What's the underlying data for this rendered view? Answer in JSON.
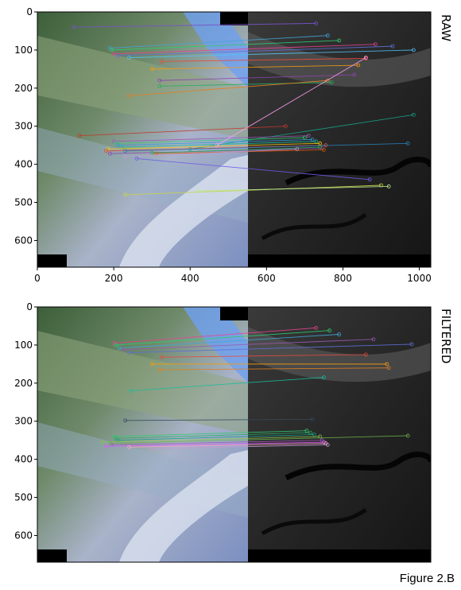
{
  "caption": "Figure 2.B",
  "panels": [
    {
      "id": "raw",
      "label": "RAW",
      "x_ticks": [
        0,
        200,
        400,
        600,
        800,
        1000
      ],
      "y_ticks": [
        0,
        100,
        200,
        300,
        400,
        500,
        600
      ],
      "x_range": [
        0,
        1030
      ],
      "y_range": [
        0,
        670
      ],
      "matches": [
        {
          "x1": 95,
          "y1": 40,
          "x2": 730,
          "y2": 30,
          "color": "#7a52c9"
        },
        {
          "x1": 190,
          "y1": 95,
          "x2": 760,
          "y2": 62,
          "color": "#3fa7d6"
        },
        {
          "x1": 195,
          "y1": 100,
          "x2": 790,
          "y2": 75,
          "color": "#2ecc71"
        },
        {
          "x1": 200,
          "y1": 110,
          "x2": 885,
          "y2": 85,
          "color": "#e84393"
        },
        {
          "x1": 210,
          "y1": 115,
          "x2": 930,
          "y2": 90,
          "color": "#5f6fd6"
        },
        {
          "x1": 240,
          "y1": 120,
          "x2": 985,
          "y2": 100,
          "color": "#4fc3f7"
        },
        {
          "x1": 325,
          "y1": 130,
          "x2": 860,
          "y2": 122,
          "color": "#e74c3c"
        },
        {
          "x1": 300,
          "y1": 150,
          "x2": 840,
          "y2": 140,
          "color": "#f39c12"
        },
        {
          "x1": 320,
          "y1": 180,
          "x2": 830,
          "y2": 165,
          "color": "#8e44ad"
        },
        {
          "x1": 320,
          "y1": 195,
          "x2": 770,
          "y2": 185,
          "color": "#27ae60"
        },
        {
          "x1": 240,
          "y1": 220,
          "x2": 760,
          "y2": 180,
          "color": "#e67e22"
        },
        {
          "x1": 110,
          "y1": 325,
          "x2": 650,
          "y2": 300,
          "color": "#c0392b"
        },
        {
          "x1": 400,
          "y1": 360,
          "x2": 985,
          "y2": 270,
          "color": "#16a085"
        },
        {
          "x1": 200,
          "y1": 340,
          "x2": 710,
          "y2": 325,
          "color": "#9b59b6"
        },
        {
          "x1": 205,
          "y1": 345,
          "x2": 700,
          "y2": 330,
          "color": "#2ecc71"
        },
        {
          "x1": 210,
          "y1": 350,
          "x2": 720,
          "y2": 335,
          "color": "#3498db"
        },
        {
          "x1": 220,
          "y1": 355,
          "x2": 730,
          "y2": 340,
          "color": "#1abc9c"
        },
        {
          "x1": 185,
          "y1": 360,
          "x2": 740,
          "y2": 345,
          "color": "#f1c40f"
        },
        {
          "x1": 180,
          "y1": 365,
          "x2": 755,
          "y2": 350,
          "color": "#e74c3c"
        },
        {
          "x1": 230,
          "y1": 365,
          "x2": 970,
          "y2": 345,
          "color": "#2980b9"
        },
        {
          "x1": 190,
          "y1": 372,
          "x2": 745,
          "y2": 358,
          "color": "#8e44ad"
        },
        {
          "x1": 300,
          "y1": 370,
          "x2": 740,
          "y2": 355,
          "color": "#27ae60"
        },
        {
          "x1": 310,
          "y1": 372,
          "x2": 750,
          "y2": 362,
          "color": "#d35400"
        },
        {
          "x1": 230,
          "y1": 380,
          "x2": 680,
          "y2": 360,
          "color": "#c39bd3"
        },
        {
          "x1": 470,
          "y1": 350,
          "x2": 860,
          "y2": 120,
          "color": "#ff9ff3"
        },
        {
          "x1": 260,
          "y1": 385,
          "x2": 870,
          "y2": 440,
          "color": "#6c5ce7"
        },
        {
          "x1": 230,
          "y1": 480,
          "x2": 900,
          "y2": 455,
          "color": "#c8d645"
        },
        {
          "x1": 420,
          "y1": 470,
          "x2": 920,
          "y2": 458,
          "color": "#b8e994"
        }
      ]
    },
    {
      "id": "filtered",
      "label": "FILTERED",
      "x_ticks": [],
      "y_ticks": [
        0,
        100,
        200,
        300,
        400,
        500,
        600
      ],
      "x_range": [
        0,
        1030
      ],
      "y_range": [
        0,
        670
      ],
      "matches": [
        {
          "x1": 200,
          "y1": 95,
          "x2": 730,
          "y2": 55,
          "color": "#e84393"
        },
        {
          "x1": 205,
          "y1": 100,
          "x2": 765,
          "y2": 62,
          "color": "#2ecc71"
        },
        {
          "x1": 215,
          "y1": 108,
          "x2": 790,
          "y2": 72,
          "color": "#3fa7d6"
        },
        {
          "x1": 225,
          "y1": 112,
          "x2": 880,
          "y2": 85,
          "color": "#9b59b6"
        },
        {
          "x1": 240,
          "y1": 120,
          "x2": 980,
          "y2": 98,
          "color": "#5f6fd6"
        },
        {
          "x1": 325,
          "y1": 132,
          "x2": 860,
          "y2": 125,
          "color": "#e74c3c"
        },
        {
          "x1": 300,
          "y1": 150,
          "x2": 915,
          "y2": 150,
          "color": "#f39c12"
        },
        {
          "x1": 320,
          "y1": 165,
          "x2": 920,
          "y2": 160,
          "color": "#e67e22"
        },
        {
          "x1": 245,
          "y1": 220,
          "x2": 750,
          "y2": 185,
          "color": "#1abc9c"
        },
        {
          "x1": 200,
          "y1": 340,
          "x2": 705,
          "y2": 325,
          "color": "#2ecc71"
        },
        {
          "x1": 205,
          "y1": 345,
          "x2": 715,
          "y2": 330,
          "color": "#27ae60"
        },
        {
          "x1": 210,
          "y1": 350,
          "x2": 725,
          "y2": 335,
          "color": "#16a085"
        },
        {
          "x1": 170,
          "y1": 355,
          "x2": 740,
          "y2": 340,
          "color": "#8bc34a"
        },
        {
          "x1": 190,
          "y1": 358,
          "x2": 970,
          "y2": 338,
          "color": "#6ab04c"
        },
        {
          "x1": 195,
          "y1": 362,
          "x2": 745,
          "y2": 350,
          "color": "#9b59b6"
        },
        {
          "x1": 180,
          "y1": 366,
          "x2": 750,
          "y2": 355,
          "color": "#e056fd"
        },
        {
          "x1": 240,
          "y1": 368,
          "x2": 755,
          "y2": 358,
          "color": "#f8a5c2"
        },
        {
          "x1": 300,
          "y1": 372,
          "x2": 760,
          "y2": 362,
          "color": "#c39bd3"
        },
        {
          "x1": 230,
          "y1": 298,
          "x2": 720,
          "y2": 295,
          "color": "#34495e"
        }
      ]
    }
  ]
}
